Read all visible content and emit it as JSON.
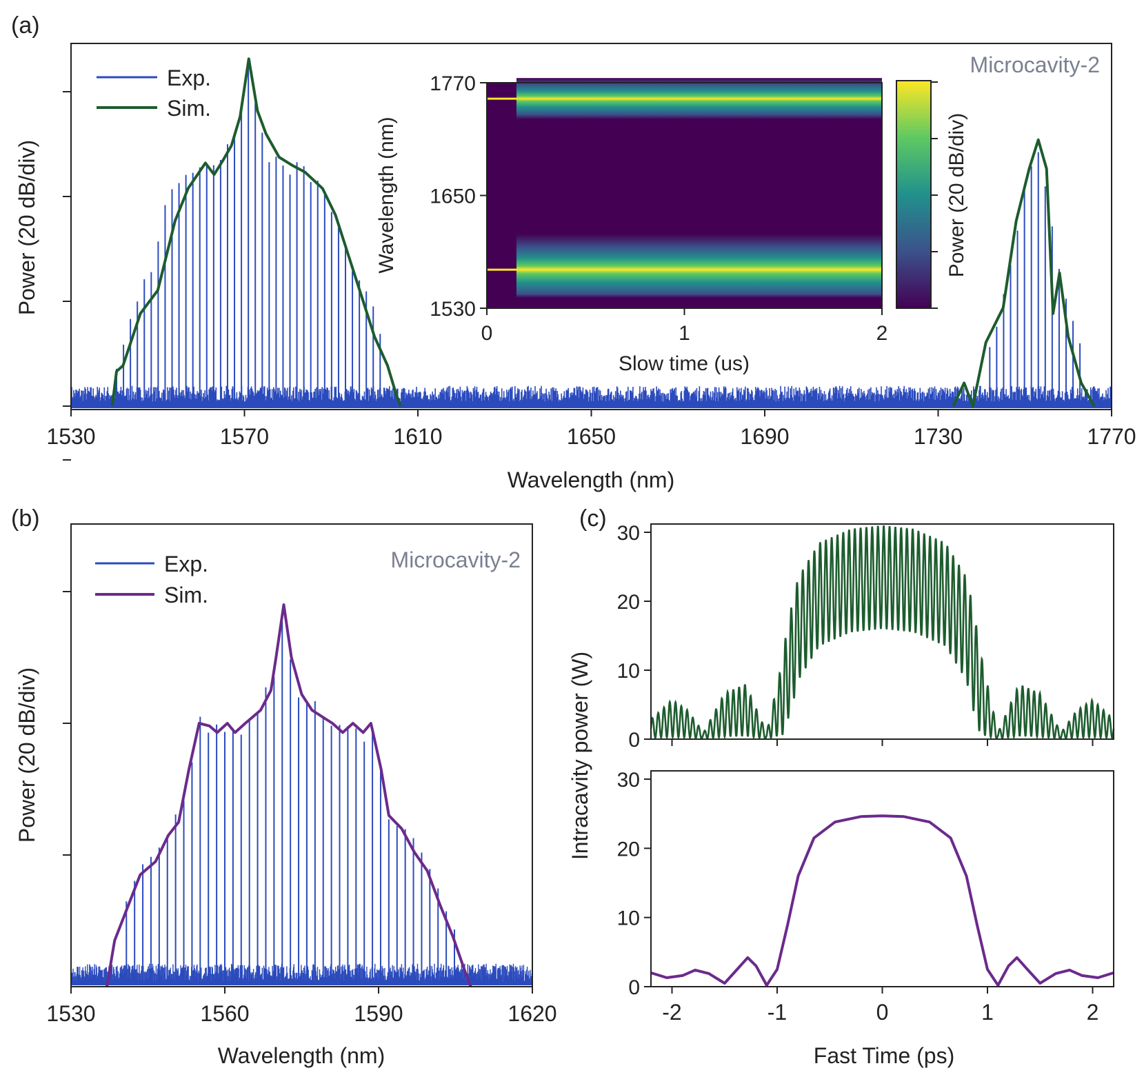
{
  "figure": {
    "panel_labels": [
      "(a)",
      "(b)",
      "(c)"
    ]
  },
  "colors": {
    "exp": "#2b4bbd",
    "sim_a": "#1d5c2e",
    "sim_b": "#6b2a8c",
    "fast_top": "#1d5c2e",
    "fast_bottom": "#6b2a8c",
    "annotation": "#7a8090",
    "axis": "#222222"
  },
  "chart_data": [
    {
      "panel": "(a)",
      "type": "line",
      "xlabel": "Wavelength (nm)",
      "ylabel": "Power (20 dB/div)",
      "xlim": [
        1530,
        1770
      ],
      "xticks": [
        1530,
        1570,
        1610,
        1650,
        1690,
        1730,
        1770
      ],
      "ylim_div": [
        0,
        3
      ],
      "annotation": "Microcavity-2",
      "legend": [
        "Exp.",
        "Sim."
      ],
      "comb_fsr_nm": 1.6,
      "series": [
        {
          "name": "Exp.",
          "noise_floor_div": 0.15,
          "comb_lines": [
            {
              "center": 1570.9,
              "x_from": 1540.5,
              "x_to": 1602.5
            },
            {
              "center": 1753.1,
              "x_from": 1740.5,
              "x_to": 1763.0
            }
          ],
          "peaks_div": [
            [
              1540.5,
              0.35
            ],
            [
              1545.0,
              0.95
            ],
            [
              1549.0,
              1.3
            ],
            [
              1552.5,
              1.9
            ],
            [
              1557.0,
              2.15
            ],
            [
              1561.5,
              2.15
            ],
            [
              1566.0,
              2.35
            ],
            [
              1568.5,
              2.6
            ],
            [
              1570.9,
              3.0
            ],
            [
              1573.0,
              2.55
            ],
            [
              1575.5,
              2.25
            ],
            [
              1580.0,
              2.15
            ],
            [
              1584.0,
              2.1
            ],
            [
              1588.0,
              1.95
            ],
            [
              1592.0,
              1.55
            ],
            [
              1596.0,
              1.15
            ],
            [
              1600.0,
              0.85
            ],
            [
              1602.5,
              0.5
            ],
            [
              1740.5,
              0.35
            ],
            [
              1744.5,
              0.85
            ],
            [
              1748.0,
              1.55
            ],
            [
              1751.0,
              2.1
            ],
            [
              1753.1,
              2.2
            ],
            [
              1755.5,
              1.75
            ],
            [
              1758.0,
              1.2
            ],
            [
              1761.0,
              0.8
            ],
            [
              1763.0,
              0.5
            ]
          ]
        },
        {
          "name": "Sim.",
          "points_div": [
            [
              1539.5,
              0.0
            ],
            [
              1540.5,
              0.3
            ],
            [
              1542.0,
              0.35
            ],
            [
              1546.0,
              0.8
            ],
            [
              1550.0,
              1.0
            ],
            [
              1554.0,
              1.6
            ],
            [
              1557.0,
              1.88
            ],
            [
              1561.0,
              2.1
            ],
            [
              1563.0,
              2.0
            ],
            [
              1565.0,
              2.12
            ],
            [
              1567.0,
              2.25
            ],
            [
              1569.0,
              2.5
            ],
            [
              1571.0,
              3.0
            ],
            [
              1573.0,
              2.55
            ],
            [
              1575.0,
              2.35
            ],
            [
              1578.0,
              2.15
            ],
            [
              1581.0,
              2.08
            ],
            [
              1584.0,
              2.02
            ],
            [
              1586.0,
              1.95
            ],
            [
              1588.0,
              1.88
            ],
            [
              1591.0,
              1.65
            ],
            [
              1594.0,
              1.3
            ],
            [
              1597.0,
              0.95
            ],
            [
              1600.0,
              0.6
            ],
            [
              1603.0,
              0.35
            ],
            [
              1605.0,
              0.1
            ],
            [
              1606.0,
              0.0
            ],
            [
              1733.5,
              0.0
            ],
            [
              1736.0,
              0.2
            ],
            [
              1738.0,
              0.0
            ],
            [
              1741.0,
              0.55
            ],
            [
              1745.0,
              0.85
            ],
            [
              1748.0,
              1.6
            ],
            [
              1751.0,
              2.05
            ],
            [
              1753.1,
              2.3
            ],
            [
              1755.0,
              2.05
            ],
            [
              1756.5,
              0.8
            ],
            [
              1758.0,
              1.15
            ],
            [
              1760.0,
              0.6
            ],
            [
              1763.0,
              0.2
            ],
            [
              1766.0,
              0.0
            ]
          ]
        }
      ],
      "inset": {
        "type": "heatmap",
        "xlabel": "Slow time (us)",
        "ylabel": "Wavelength (nm)",
        "xlim": [
          0,
          2
        ],
        "xticks": [
          0,
          1,
          2
        ],
        "ylim": [
          1530,
          1770
        ],
        "yticks": [
          1530,
          1650,
          1770
        ],
        "colorbar_label": "Power (20 dB/div)",
        "colormap": [
          "#440154",
          "#3b528b",
          "#21918c",
          "#5ec962",
          "#fde725"
        ],
        "bands": [
          {
            "center_nm": 1753,
            "half_width_nm": 22,
            "peak_nm": 1753
          },
          {
            "center_nm": 1575,
            "half_width_nm": 34,
            "peak_nm": 1571
          }
        ],
        "background_level": 0.0,
        "onset_time_us": 0.15
      }
    },
    {
      "panel": "(b)",
      "type": "line",
      "xlabel": "Wavelength (nm)",
      "ylabel": "Power (20 dB/div)",
      "xlim": [
        1530,
        1620
      ],
      "xticks": [
        1530,
        1560,
        1590,
        1620
      ],
      "ylim_div": [
        0,
        3
      ],
      "annotation": "Microcavity-2",
      "legend": [
        "Exp.",
        "Sim."
      ],
      "series": [
        {
          "name": "Exp.",
          "noise_floor_div": 0.15,
          "comb_lines": [
            {
              "center": 1571.2,
              "x_from": 1540.0,
              "x_to": 1605.0
            }
          ]
        },
        {
          "name": "Sim.",
          "points_div": [
            [
              1537.0,
              0.0
            ],
            [
              1538.5,
              0.35
            ],
            [
              1541.0,
              0.6
            ],
            [
              1543.5,
              0.85
            ],
            [
              1546.5,
              0.95
            ],
            [
              1549.0,
              1.15
            ],
            [
              1551.0,
              1.25
            ],
            [
              1553.0,
              1.65
            ],
            [
              1555.0,
              2.0
            ],
            [
              1557.0,
              1.98
            ],
            [
              1558.5,
              1.93
            ],
            [
              1560.5,
              2.0
            ],
            [
              1562.0,
              1.93
            ],
            [
              1564.0,
              2.0
            ],
            [
              1565.5,
              2.05
            ],
            [
              1567.0,
              2.1
            ],
            [
              1569.0,
              2.25
            ],
            [
              1570.0,
              2.5
            ],
            [
              1571.5,
              2.9
            ],
            [
              1573.0,
              2.5
            ],
            [
              1575.0,
              2.22
            ],
            [
              1577.0,
              2.1
            ],
            [
              1579.0,
              2.05
            ],
            [
              1581.0,
              2.0
            ],
            [
              1583.0,
              1.93
            ],
            [
              1585.0,
              2.0
            ],
            [
              1587.0,
              1.93
            ],
            [
              1588.5,
              2.0
            ],
            [
              1590.5,
              1.65
            ],
            [
              1592.0,
              1.3
            ],
            [
              1594.5,
              1.2
            ],
            [
              1597.0,
              1.02
            ],
            [
              1599.5,
              0.88
            ],
            [
              1602.0,
              0.62
            ],
            [
              1604.5,
              0.38
            ],
            [
              1607.0,
              0.1
            ],
            [
              1608.0,
              0.0
            ]
          ]
        }
      ]
    },
    {
      "panel": "(c)",
      "type": "line",
      "xlabel": "Fast Time (ps)",
      "ylabel": "Intracavity power (W)",
      "xlim": [
        -2.2,
        2.2
      ],
      "xticks": [
        -2,
        -1,
        0,
        1,
        2
      ],
      "subplots": [
        {
          "position": "top",
          "ylim": [
            0,
            30
          ],
          "yticks": [
            0,
            10,
            20,
            30
          ],
          "envelope_W": [
            [
              -2.2,
              1.5
            ],
            [
              -2.0,
              3.0
            ],
            [
              -1.85,
              2.2
            ],
            [
              -1.7,
              0.5
            ],
            [
              -1.5,
              3.5
            ],
            [
              -1.3,
              4.2
            ],
            [
              -1.1,
              0.5
            ],
            [
              -0.95,
              6.0
            ],
            [
              -0.8,
              16.0
            ],
            [
              -0.6,
              21.0
            ],
            [
              -0.3,
              23.0
            ],
            [
              0.0,
              23.5
            ],
            [
              0.3,
              23.0
            ],
            [
              0.6,
              21.0
            ],
            [
              0.8,
              16.0
            ],
            [
              0.95,
              6.0
            ],
            [
              1.1,
              0.5
            ],
            [
              1.3,
              4.2
            ],
            [
              1.5,
              3.5
            ],
            [
              1.7,
              0.5
            ],
            [
              1.85,
              2.2
            ],
            [
              2.0,
              3.0
            ],
            [
              2.2,
              1.5
            ]
          ],
          "oscillation_amplitude_W": 7.5,
          "oscillation_period_ps": 0.055
        },
        {
          "position": "bottom",
          "ylim": [
            0,
            30
          ],
          "yticks": [
            0,
            10,
            20,
            30
          ],
          "points_W": [
            [
              -2.2,
              2.0
            ],
            [
              -2.05,
              1.3
            ],
            [
              -1.9,
              1.6
            ],
            [
              -1.78,
              2.4
            ],
            [
              -1.65,
              1.9
            ],
            [
              -1.5,
              0.5
            ],
            [
              -1.38,
              2.5
            ],
            [
              -1.28,
              4.2
            ],
            [
              -1.2,
              3.0
            ],
            [
              -1.1,
              0.2
            ],
            [
              -1.0,
              2.5
            ],
            [
              -0.9,
              9.0
            ],
            [
              -0.8,
              16.0
            ],
            [
              -0.65,
              21.5
            ],
            [
              -0.45,
              23.8
            ],
            [
              -0.2,
              24.6
            ],
            [
              0.0,
              24.7
            ],
            [
              0.2,
              24.6
            ],
            [
              0.45,
              23.8
            ],
            [
              0.65,
              21.5
            ],
            [
              0.8,
              16.0
            ],
            [
              0.9,
              9.0
            ],
            [
              1.0,
              2.5
            ],
            [
              1.1,
              0.2
            ],
            [
              1.2,
              3.0
            ],
            [
              1.28,
              4.2
            ],
            [
              1.38,
              2.5
            ],
            [
              1.5,
              0.5
            ],
            [
              1.65,
              1.9
            ],
            [
              1.78,
              2.4
            ],
            [
              1.9,
              1.6
            ],
            [
              2.05,
              1.3
            ],
            [
              2.2,
              2.0
            ]
          ]
        }
      ]
    }
  ]
}
